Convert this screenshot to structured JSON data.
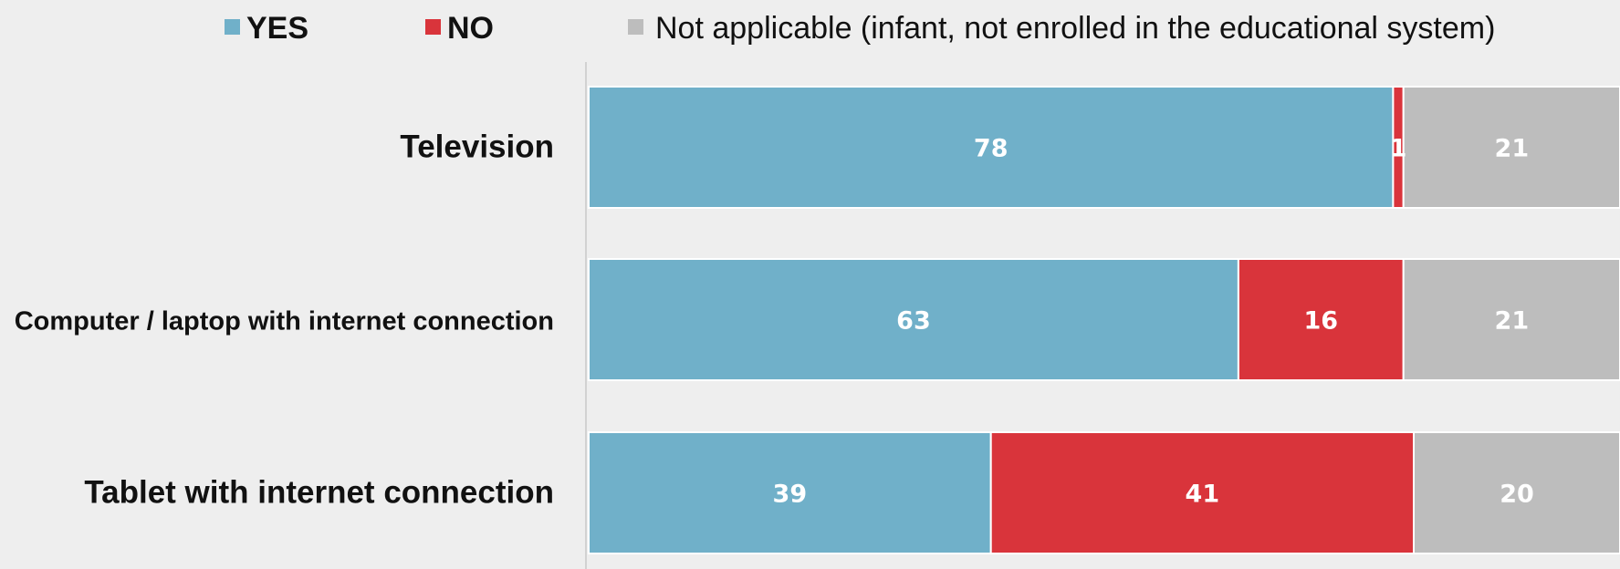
{
  "chart_data": {
    "type": "bar",
    "orientation": "horizontal",
    "stacked": true,
    "categories": [
      "Television",
      "Computer / laptop with internet connection",
      "Tablet with internet connection"
    ],
    "series": [
      {
        "name": "YES",
        "values": [
          78,
          63,
          39
        ],
        "color": "#70b0c9"
      },
      {
        "name": "NO",
        "values": [
          1,
          16,
          41
        ],
        "color": "#d9343b"
      },
      {
        "name": "Not applicable (infant, not enrolled in the educational system)",
        "values": [
          21,
          21,
          20
        ],
        "color": "#bdbdbd"
      }
    ],
    "data_labels": [
      [
        "78",
        "1",
        "21"
      ],
      [
        "63",
        "16",
        "21"
      ],
      [
        "39",
        "41",
        "20"
      ]
    ],
    "legend_position": "top",
    "xlim": [
      0,
      100
    ],
    "grid": false
  }
}
